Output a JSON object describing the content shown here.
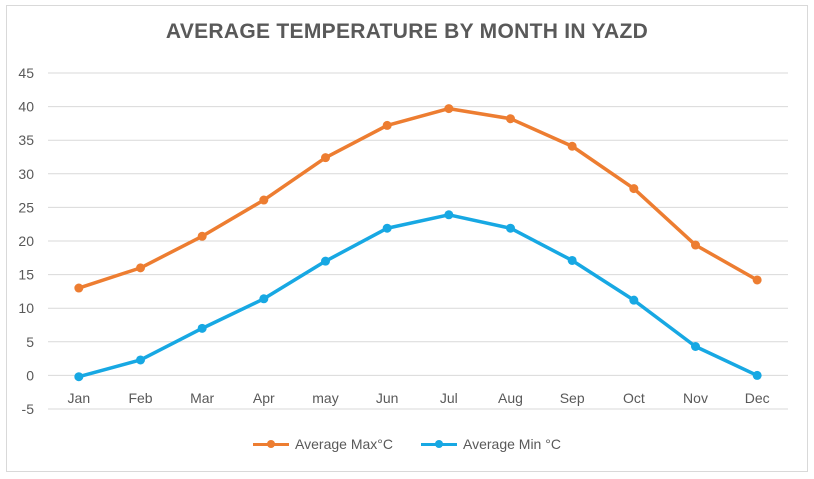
{
  "chart_data": {
    "type": "line",
    "title": "AVERAGE TEMPERATURE BY MONTH IN YAZD",
    "xlabel": "",
    "ylabel": "",
    "categories": [
      "Jan",
      "Feb",
      "Mar",
      "Apr",
      "may",
      "Jun",
      "Jul",
      "Aug",
      "Sep",
      "Oct",
      "Nov",
      "Dec"
    ],
    "ylim": [
      -5,
      45
    ],
    "yticks": [
      "-5",
      "0",
      "5",
      "10",
      "15",
      "20",
      "25",
      "30",
      "35",
      "40",
      "45"
    ],
    "grid": true,
    "legend_position": "bottom",
    "series": [
      {
        "name": "Average Max°C",
        "color": "#ed7d31",
        "values": [
          13.0,
          16.0,
          20.7,
          26.1,
          32.4,
          37.2,
          39.7,
          38.2,
          34.1,
          27.8,
          19.4,
          14.2
        ]
      },
      {
        "name": "Average Min °C",
        "color": "#17a8e3",
        "values": [
          -0.2,
          2.3,
          7.0,
          11.4,
          17.0,
          21.9,
          23.9,
          21.9,
          17.1,
          11.2,
          4.3,
          0.0
        ]
      }
    ]
  }
}
